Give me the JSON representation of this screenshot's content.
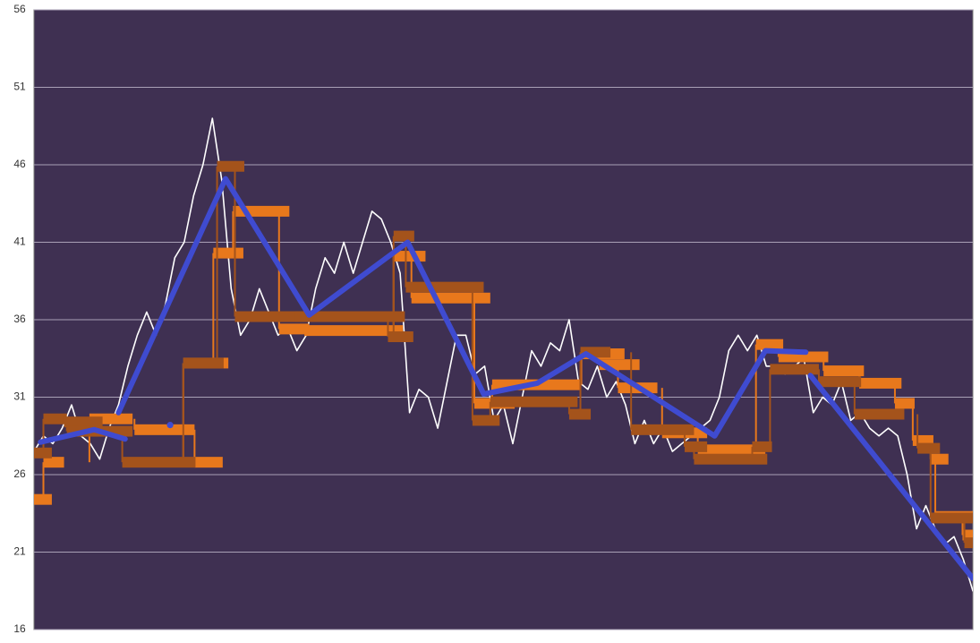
{
  "chart_data": {
    "type": "combo",
    "xlim": [
      0,
      100
    ],
    "ylim": [
      16,
      56
    ],
    "yticks": [
      16,
      21,
      26,
      31,
      36,
      41,
      46,
      51,
      56
    ],
    "grid": true,
    "background": "#3f3052",
    "series": [
      {
        "type": "line",
        "color": "#ffffff",
        "width": 1.6,
        "x": [
          0,
          1,
          2,
          3,
          4,
          5,
          6,
          7,
          8,
          9,
          10,
          11,
          12,
          13,
          14,
          15,
          16,
          17,
          18,
          19,
          20,
          21,
          22,
          23,
          24,
          25,
          26,
          27,
          28,
          29,
          30,
          31,
          32,
          33,
          34,
          35,
          36,
          37,
          38,
          39,
          40,
          41,
          42,
          43,
          44,
          45,
          46,
          47,
          48,
          49,
          50,
          51,
          52,
          53,
          54,
          55,
          56,
          57,
          58,
          59,
          60,
          61,
          62,
          63,
          64,
          65,
          66,
          67,
          68,
          69,
          70,
          71,
          72,
          73,
          74,
          75,
          76,
          77,
          78,
          79,
          80,
          81,
          82,
          83,
          84,
          85,
          86,
          87,
          88,
          89,
          90,
          91,
          92,
          93,
          94,
          95,
          96,
          97,
          98,
          99,
          100
        ],
        "values": [
          27.5,
          28.5,
          28,
          29,
          30.5,
          28.5,
          28,
          27,
          29,
          30.5,
          33,
          35,
          36.5,
          35,
          37,
          40,
          41,
          44,
          46,
          49,
          45,
          38,
          35,
          36,
          38,
          36.5,
          35,
          35.5,
          34,
          35,
          38,
          40,
          39,
          41,
          39,
          41,
          43,
          42.5,
          41,
          39,
          30,
          31.5,
          31,
          29,
          32,
          35,
          35,
          32.5,
          33,
          29.5,
          30.5,
          28,
          31,
          34,
          33,
          34.5,
          34,
          36,
          32,
          31.5,
          33,
          31,
          32,
          30.5,
          28,
          29.5,
          28,
          29,
          27.5,
          28,
          28.5,
          29,
          29.5,
          31,
          34,
          35,
          34,
          35,
          33,
          33,
          32.5,
          33,
          33.5,
          30,
          31,
          30.5,
          32,
          29.5,
          30,
          29,
          28.5,
          29,
          28.5,
          26,
          22.5,
          24,
          22.5,
          21.5,
          22,
          20.5,
          18.5
        ]
      },
      {
        "type": "bars",
        "color": "#e8781c",
        "x0": [
          -0.5,
          1.0,
          5.9,
          10.7,
          17.1,
          15.9,
          19.1,
          21.2,
          26.1,
          28.8,
          38.3,
          40.2,
          46.9,
          48.8,
          58.3,
          60.2,
          62.2,
          66.9,
          70.7,
          76.9,
          79.3,
          84.1,
          87.9,
          91.7,
          93.6,
          95.5,
          96.0,
          98.9
        ],
        "x1": [
          1.9,
          3.2,
          10.5,
          17.1,
          20.1,
          20.7,
          22.3,
          27.2,
          29.3,
          39.3,
          41.7,
          48.6,
          51.2,
          58.2,
          62.9,
          64.5,
          66.4,
          71.7,
          77.9,
          79.8,
          84.6,
          88.4,
          92.4,
          93.8,
          95.8,
          97.4,
          100,
          100
        ],
        "values": [
          24.4,
          26.8,
          29.6,
          28.9,
          26.8,
          33.2,
          40.3,
          43.0,
          35.4,
          35.3,
          40.1,
          37.4,
          30.6,
          31.8,
          33.8,
          33.1,
          31.6,
          28.7,
          27.6,
          34.4,
          33.6,
          32.7,
          31.9,
          30.6,
          28.2,
          27.0,
          23.3,
          22.1
        ]
      },
      {
        "type": "bars",
        "color": "#a4531b",
        "x0": [
          -0.5,
          1.0,
          3.2,
          3.5,
          9.4,
          15.9,
          19.5,
          21.4,
          27.8,
          37.7,
          38.3,
          39.6,
          46.7,
          48.6,
          57.0,
          58.2,
          63.6,
          69.3,
          70.3,
          76.5,
          78.4,
          83.6,
          87.4,
          94.1,
          95.5,
          99.1
        ],
        "x1": [
          1.9,
          3.5,
          7.3,
          10.5,
          17.2,
          20.2,
          22.4,
          28.8,
          39.5,
          40.4,
          40.5,
          47.9,
          49.6,
          57.9,
          59.3,
          61.4,
          70.3,
          71.7,
          78.1,
          78.6,
          83.6,
          88.1,
          92.7,
          96.5,
          100,
          100
        ],
        "values": [
          27.4,
          29.6,
          29.4,
          28.8,
          26.8,
          33.2,
          45.9,
          36.2,
          36.2,
          34.9,
          41.4,
          38.1,
          29.5,
          30.7,
          29.9,
          33.9,
          28.9,
          27.8,
          27.0,
          27.8,
          32.8,
          32.0,
          29.9,
          27.7,
          23.2,
          21.6
        ]
      },
      {
        "type": "line",
        "color": "#3f4bd0",
        "width": 6,
        "x": [
          0.7,
          6.4,
          9.7,
          null,
          14.5,
          null,
          9.0,
          20.4,
          29.3,
          39.8,
          47.9,
          53.6,
          58.8,
          72.5,
          77.9,
          82.2,
          null,
          82.7,
          100
        ],
        "values": [
          28.1,
          28.9,
          28.3,
          null,
          29.2,
          null,
          30.0,
          45.1,
          36.3,
          41.0,
          31.2,
          31.9,
          33.8,
          28.5,
          34.0,
          33.9,
          null,
          32.4,
          19.3
        ]
      }
    ]
  }
}
